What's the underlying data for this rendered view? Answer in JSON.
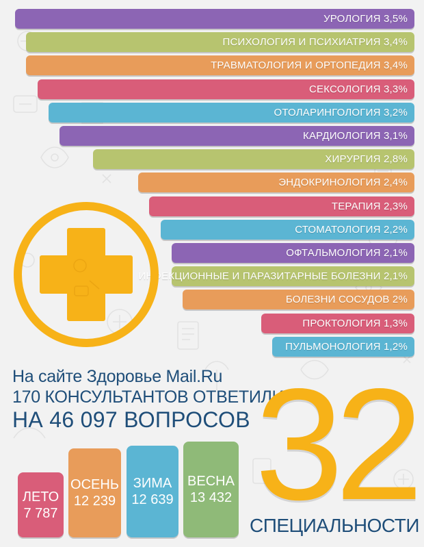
{
  "colors": {
    "background": "#f2f2f2",
    "purple": "#8c65b4",
    "olive": "#b7c46f",
    "orange": "#e89c5a",
    "pink": "#d95d79",
    "blue": "#5bb5d3",
    "yellow": "#f7b218",
    "navy": "#1f4e79",
    "green": "#8fba78"
  },
  "chart_data": {
    "type": "bar",
    "orientation": "horizontal",
    "categories": [
      "УРОЛОГИЯ",
      "ПСИХОЛОГИЯ И ПСИХИАТРИЯ",
      "ТРАВМАТОЛОГИЯ И ОРТОПЕДИЯ",
      "СЕКСОЛОГИЯ",
      "ОТОЛАРИНГОЛОГИЯ",
      "КАРДИОЛОГИЯ",
      "ХИРУРГИЯ",
      "ЭНДОКРИНОЛОГИЯ",
      "ТЕРАПИЯ",
      "СТОМАТОЛОГИЯ",
      "ОФТАЛЬМОЛОГИЯ",
      "ИНФЕКЦИОННЫЕ И ПАРАЗИТАРНЫЕ БОЛЕЗНИ",
      "БОЛЕЗНИ СОСУДОВ",
      "ПРОКТОЛОГИЯ",
      "ПУЛЬМОНОЛОГИЯ"
    ],
    "values": [
      3.5,
      3.4,
      3.4,
      3.3,
      3.2,
      3.1,
      2.8,
      2.4,
      2.3,
      2.2,
      2.1,
      2.1,
      2.0,
      1.3,
      1.2
    ],
    "value_labels": [
      "УРОЛОГИЯ 3,5%",
      "ПСИХОЛОГИЯ И ПСИХИАТРИЯ 3,4%",
      "ТРАВМАТОЛОГИЯ И ОРТОПЕДИЯ 3,4%",
      "СЕКСОЛОГИЯ 3,3%",
      "ОТОЛАРИНГОЛОГИЯ 3,2%",
      "КАРДИОЛОГИЯ 3,1%",
      "ХИРУРГИЯ 2,8%",
      "ЭНДОКРИНОЛОГИЯ 2,4%",
      "ТЕРАПИЯ 2,3%",
      "СТОМАТОЛОГИЯ 2,2%",
      "ОФТАЛЬМОЛОГИЯ 2,1%",
      "ИНФЕКЦИОННЫЕ И ПАРАЗИТАРНЫЕ БОЛЕЗНИ 2,1%",
      "БОЛЕЗНИ СОСУДОВ 2%",
      "ПРОКТОЛОГИЯ 1,3%",
      "ПУЛЬМОНОЛОГИЯ 1,2%"
    ],
    "bar_colors": [
      "#8c65b4",
      "#b7c46f",
      "#e89c5a",
      "#d95d79",
      "#5bb5d3",
      "#8c65b4",
      "#b7c46f",
      "#e89c5a",
      "#d95d79",
      "#5bb5d3",
      "#8c65b4",
      "#b7c46f",
      "#e89c5a",
      "#d95d79",
      "#5bb5d3"
    ],
    "unit": "%",
    "grid": false,
    "legend": "none"
  },
  "headline": {
    "line1": "На сайте Здоровье Mail.Ru",
    "line2": "170 КОНСУЛЬТАНТОВ ОТВЕТИЛИ",
    "line3": "НА 46 097 ВОПРОСОВ"
  },
  "seasons": [
    {
      "name": "ЛЕТО",
      "value": "7 787",
      "count": 7787,
      "color": "#d95d79"
    },
    {
      "name": "ОСЕНЬ",
      "value": "12 239",
      "count": 12239,
      "color": "#e89c5a"
    },
    {
      "name": "ЗИМА",
      "value": "12 639",
      "count": 12639,
      "color": "#5bb5d3"
    },
    {
      "name": "ВЕСНА",
      "value": "13 432",
      "count": 13432,
      "color": "#8fba78"
    }
  ],
  "specialties": {
    "number": "32",
    "caption": "СПЕЦИАЛЬНОСТИ"
  },
  "icons": [
    "medical-cross-icon"
  ]
}
